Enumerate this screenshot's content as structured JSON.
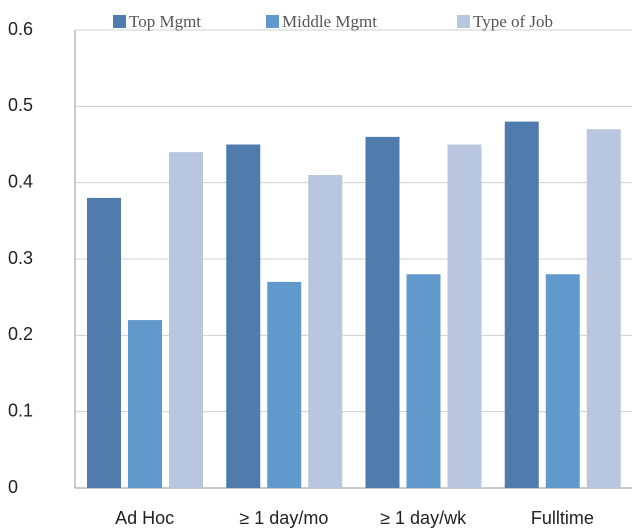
{
  "chart_data": {
    "type": "bar",
    "categories": [
      "Ad Hoc",
      "≥ 1 day/mo",
      "≥ 1 day/wk",
      "Fulltime"
    ],
    "series": [
      {
        "name": "Top Mgmt",
        "color": "#4f7cac",
        "values": [
          0.38,
          0.45,
          0.46,
          0.48
        ]
      },
      {
        "name": "Middle Mgmt",
        "color": "#6299cc",
        "values": [
          0.22,
          0.27,
          0.28,
          0.28
        ]
      },
      {
        "name": "Type of Job",
        "color": "#b8c7df",
        "values": [
          0.44,
          0.41,
          0.45,
          0.47
        ]
      }
    ],
    "ylim": [
      0,
      0.6
    ],
    "yticks": [
      0,
      0.1,
      0.2,
      0.3,
      0.4,
      0.5,
      0.6
    ],
    "grid": true,
    "legend": "top"
  }
}
